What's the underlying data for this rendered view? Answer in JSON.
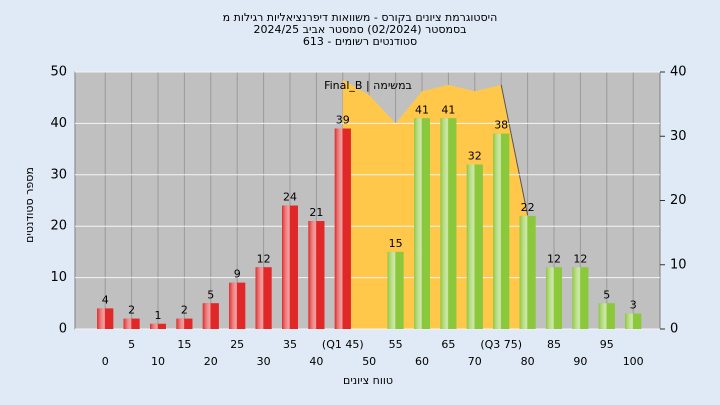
{
  "chart_data": {
    "type": "bar",
    "title": "היסטוגרמת ציונים בקורס - משוואות דיפרנציאליות רגילות מ",
    "subtitle": "בסמסטר   (02/2024)  סמסטר אביב 2024/25",
    "subtitle2": "613 - סטודנטים רשומים",
    "ylabel": "מספר סטודנטים",
    "xlabel": "טווח ציונים",
    "annotation": "Final_B | במשימה",
    "categories": [
      "0",
      "5",
      "10",
      "15",
      "20",
      "25",
      "30",
      "35",
      "40",
      "(Q1 45)",
      "50",
      "55",
      "60",
      "65",
      "70",
      "(Q3 75)",
      "80",
      "85",
      "90",
      "95",
      "100"
    ],
    "values": [
      4,
      2,
      1,
      2,
      5,
      9,
      12,
      24,
      21,
      39,
      null,
      15,
      41,
      41,
      32,
      38,
      22,
      12,
      12,
      5,
      3
    ],
    "colors": [
      "#e02828",
      "#e02828",
      "#e02828",
      "#e02828",
      "#e02828",
      "#e02828",
      "#e02828",
      "#e02828",
      "#e02828",
      "#e02828",
      null,
      "#8cc83c",
      "#8cc83c",
      "#8cc83c",
      "#8cc83c",
      "#8cc83c",
      "#8cc83c",
      "#8cc83c",
      "#8cc83c",
      "#8cc83c",
      "#8cc83c"
    ],
    "area": {
      "color": "#ffc84a",
      "axis": "y2",
      "values": [
        null,
        null,
        null,
        null,
        null,
        null,
        null,
        null,
        null,
        38.8,
        36.4,
        32,
        37,
        38,
        37,
        38,
        17.7,
        null,
        null,
        null,
        null
      ]
    },
    "ylim": [
      0,
      50
    ],
    "yticks": [
      0,
      10,
      20,
      30,
      40,
      50
    ],
    "y2lim": [
      0,
      40
    ],
    "y2ticks": [
      0,
      10,
      20,
      30,
      40
    ],
    "grid": true
  }
}
